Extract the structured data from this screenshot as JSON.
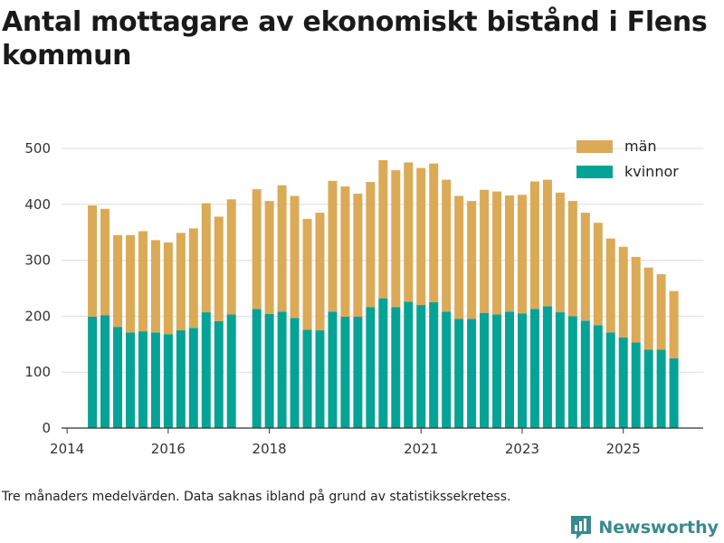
{
  "title": "Antal mottagare av ekonomiskt bistånd i Flens kommun",
  "footnote": "Tre månaders medelvärden. Data saknas ibland på grund av statistikssekretess.",
  "brand": "Newsworthy",
  "colors": {
    "man": "#dbaa57",
    "kvinnor": "#05a396",
    "grid": "#dddddd",
    "axis": "#333333",
    "brand": "#3a8a8c"
  },
  "chart_data": {
    "type": "bar",
    "stacked": true,
    "title": "Antal mottagare av ekonomiskt bistånd i Flens kommun",
    "xlabel": "",
    "ylabel": "",
    "ylim": [
      0,
      500
    ],
    "yticks": [
      0,
      100,
      200,
      300,
      400,
      500
    ],
    "xlim": [
      2013.89,
      2026.58
    ],
    "xticks": [
      2014,
      2016,
      2018,
      2021,
      2023,
      2025
    ],
    "grid": true,
    "legend_position": "top-right",
    "x": [
      2014.5,
      2014.75,
      2015.0,
      2015.25,
      2015.5,
      2015.75,
      2016.0,
      2016.25,
      2016.5,
      2016.75,
      2017.0,
      2017.25,
      2017.5,
      2017.75,
      2018.0,
      2018.25,
      2018.5,
      2018.75,
      2019.0,
      2019.25,
      2019.5,
      2019.75,
      2020.0,
      2020.25,
      2020.5,
      2020.75,
      2021.0,
      2021.25,
      2021.5,
      2021.75,
      2022.0,
      2022.25,
      2022.5,
      2022.75,
      2023.0,
      2023.25,
      2023.5,
      2023.75,
      2024.0,
      2024.25,
      2024.5,
      2024.75,
      2025.0,
      2025.25,
      2025.5,
      2025.75,
      2026.0
    ],
    "series": [
      {
        "name": "kvinnor",
        "values": [
          199,
          202,
          181,
          171,
          173,
          171,
          168,
          175,
          179,
          207,
          191,
          203,
          null,
          213,
          204,
          208,
          197,
          176,
          175,
          208,
          199,
          199,
          216,
          232,
          216,
          226,
          220,
          225,
          208,
          195,
          195,
          206,
          203,
          208,
          205,
          213,
          218,
          207,
          200,
          192,
          184,
          171,
          162,
          153,
          140,
          140,
          125
        ]
      },
      {
        "name": "män",
        "values": [
          199,
          190,
          164,
          174,
          179,
          165,
          164,
          174,
          178,
          195,
          187,
          206,
          null,
          214,
          202,
          226,
          218,
          198,
          210,
          234,
          233,
          220,
          224,
          247,
          245,
          249,
          245,
          248,
          236,
          220,
          211,
          220,
          220,
          208,
          212,
          228,
          226,
          214,
          206,
          193,
          183,
          168,
          162,
          153,
          147,
          135,
          120
        ]
      }
    ],
    "legend": [
      "män",
      "kvinnor"
    ]
  }
}
